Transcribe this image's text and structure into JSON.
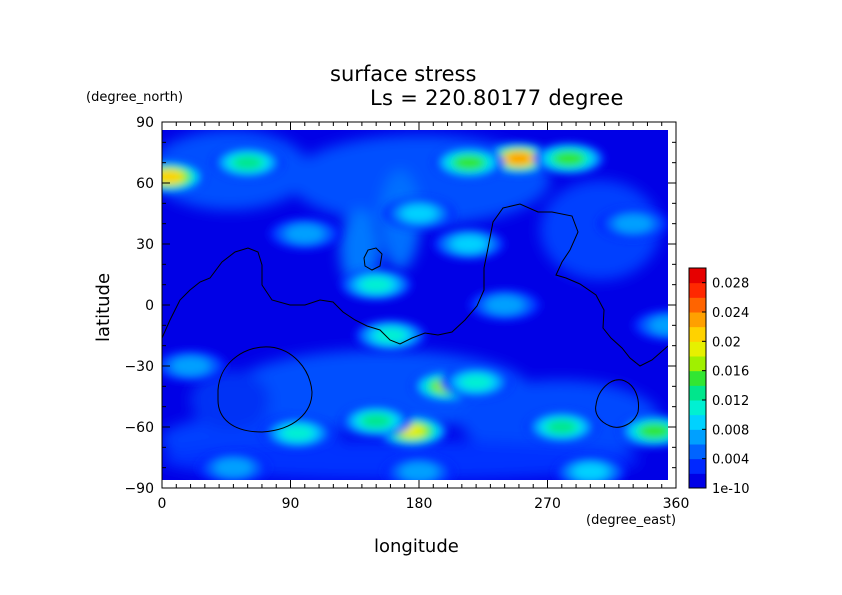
{
  "chart_data": {
    "type": "heatmap",
    "title": "surface stress",
    "subtitle": "Ls = 220.80177 degree",
    "xlabel": "longitude",
    "ylabel": "latitude",
    "xunit": "(degree_east)",
    "yunit": "(degree_north)",
    "xlim": [
      0,
      360
    ],
    "ylim": [
      -90,
      90
    ],
    "xticks": [
      "0",
      "90",
      "180",
      "270",
      "360"
    ],
    "yticks": [
      "90",
      "60",
      "30",
      "0",
      "−30",
      "−60",
      "−90"
    ],
    "colorbar": {
      "ticks": [
        "1e-10",
        "0.004",
        "0.008",
        "0.012",
        "0.016",
        "0.02",
        "0.024",
        "0.028"
      ],
      "tick_values": [
        0,
        0.004,
        0.008,
        0.012,
        0.016,
        0.02,
        0.024,
        0.028
      ],
      "range": [
        0,
        0.03
      ],
      "colors": [
        "#0000e6",
        "#0028ff",
        "#0064ff",
        "#00a0ff",
        "#00d2ff",
        "#00f0d2",
        "#00e68c",
        "#32e632",
        "#a0f000",
        "#e6f000",
        "#ffd200",
        "#ffa000",
        "#ff6400",
        "#ff2800",
        "#e60000"
      ]
    },
    "hotspots": [
      {
        "lon": 250,
        "lat": 72,
        "value": 0.021
      },
      {
        "lon": 215,
        "lat": 70,
        "value": 0.014
      },
      {
        "lon": 285,
        "lat": 72,
        "value": 0.013
      },
      {
        "lon": 5,
        "lat": 63,
        "value": 0.019
      },
      {
        "lon": 60,
        "lat": 70,
        "value": 0.011
      },
      {
        "lon": 200,
        "lat": -40,
        "value": 0.015
      },
      {
        "lon": 220,
        "lat": -38,
        "value": 0.01
      },
      {
        "lon": 175,
        "lat": -62,
        "value": 0.017
      },
      {
        "lon": 150,
        "lat": -57,
        "value": 0.012
      },
      {
        "lon": 345,
        "lat": -62,
        "value": 0.013
      },
      {
        "lon": 280,
        "lat": -60,
        "value": 0.011
      },
      {
        "lon": 95,
        "lat": -63,
        "value": 0.01
      },
      {
        "lon": 150,
        "lat": 10,
        "value": 0.009
      },
      {
        "lon": 160,
        "lat": -15,
        "value": 0.009
      },
      {
        "lon": 215,
        "lat": 30,
        "value": 0.008
      },
      {
        "lon": 180,
        "lat": 45,
        "value": 0.008
      },
      {
        "lon": 50,
        "lat": -80,
        "value": 0.006
      },
      {
        "lon": 180,
        "lat": -82,
        "value": 0.006
      },
      {
        "lon": 300,
        "lat": -82,
        "value": 0.007
      },
      {
        "lon": 240,
        "lat": 0,
        "value": 0.006
      },
      {
        "lon": 330,
        "lat": 40,
        "value": 0.006
      },
      {
        "lon": 100,
        "lat": 35,
        "value": 0.005
      },
      {
        "lon": 20,
        "lat": -30,
        "value": 0.005
      },
      {
        "lon": 355,
        "lat": -10,
        "value": 0.006
      }
    ]
  }
}
